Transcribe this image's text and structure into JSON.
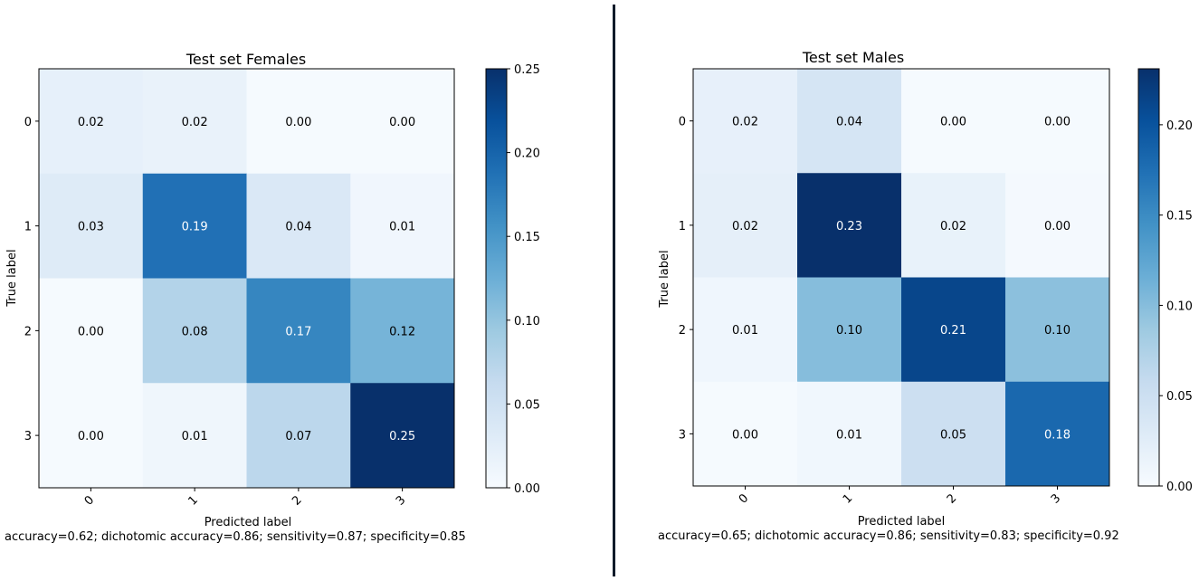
{
  "chart_data": [
    {
      "type": "heatmap",
      "title": "Test set Females",
      "xlabel": "Predicted label",
      "ylabel": "True label",
      "x_categories": [
        "0",
        "1",
        "2",
        "3"
      ],
      "y_categories": [
        "0",
        "1",
        "2",
        "3"
      ],
      "cell_labels": [
        [
          "0.02",
          "0.02",
          "0.00",
          "0.00"
        ],
        [
          "0.03",
          "0.19",
          "0.04",
          "0.01"
        ],
        [
          "0.00",
          "0.08",
          "0.17",
          "0.12"
        ],
        [
          "0.00",
          "0.01",
          "0.07",
          "0.25"
        ]
      ],
      "values": [
        [
          0.021,
          0.018,
          0.002,
          0.002
        ],
        [
          0.031,
          0.188,
          0.037,
          0.009
        ],
        [
          0.002,
          0.077,
          0.168,
          0.118
        ],
        [
          0.002,
          0.01,
          0.07,
          0.25
        ]
      ],
      "colorbar": {
        "vmin": 0,
        "vmax": 0.25,
        "ticks": [
          "0.00",
          "0.05",
          "0.10",
          "0.15",
          "0.20",
          "0.25"
        ],
        "tick_values": [
          0,
          0.05,
          0.1,
          0.15,
          0.2,
          0.25
        ]
      },
      "caption": "accuracy=0.62; dichotomic accuracy=0.86; sensitivity=0.87; specificity=0.85"
    },
    {
      "type": "heatmap",
      "title": "Test set Males",
      "xlabel": "Predicted label",
      "ylabel": "True label",
      "x_categories": [
        "0",
        "1",
        "2",
        "3"
      ],
      "y_categories": [
        "0",
        "1",
        "2",
        "3"
      ],
      "cell_labels": [
        [
          "0.02",
          "0.04",
          "0.00",
          "0.00"
        ],
        [
          "0.02",
          "0.23",
          "0.02",
          "0.00"
        ],
        [
          "0.01",
          "0.10",
          "0.21",
          "0.10"
        ],
        [
          "0.00",
          "0.01",
          "0.05",
          "0.18"
        ]
      ],
      "values": [
        [
          0.019,
          0.04,
          0.002,
          0.002
        ],
        [
          0.021,
          0.231,
          0.017,
          0.003
        ],
        [
          0.009,
          0.1,
          0.212,
          0.097
        ],
        [
          0.002,
          0.008,
          0.051,
          0.181
        ]
      ],
      "colorbar": {
        "vmin": 0,
        "vmax": 0.231,
        "ticks": [
          "0.00",
          "0.05",
          "0.10",
          "0.15",
          "0.20"
        ],
        "tick_values": [
          0,
          0.05,
          0.1,
          0.15,
          0.2
        ]
      },
      "caption": "accuracy=0.65; dichotomic accuracy=0.86; sensitivity=0.83; specificity=0.92"
    }
  ],
  "colors": {
    "divider": "#0d1b2a",
    "text_dark": "#000000",
    "text_light": "#ffffff"
  }
}
